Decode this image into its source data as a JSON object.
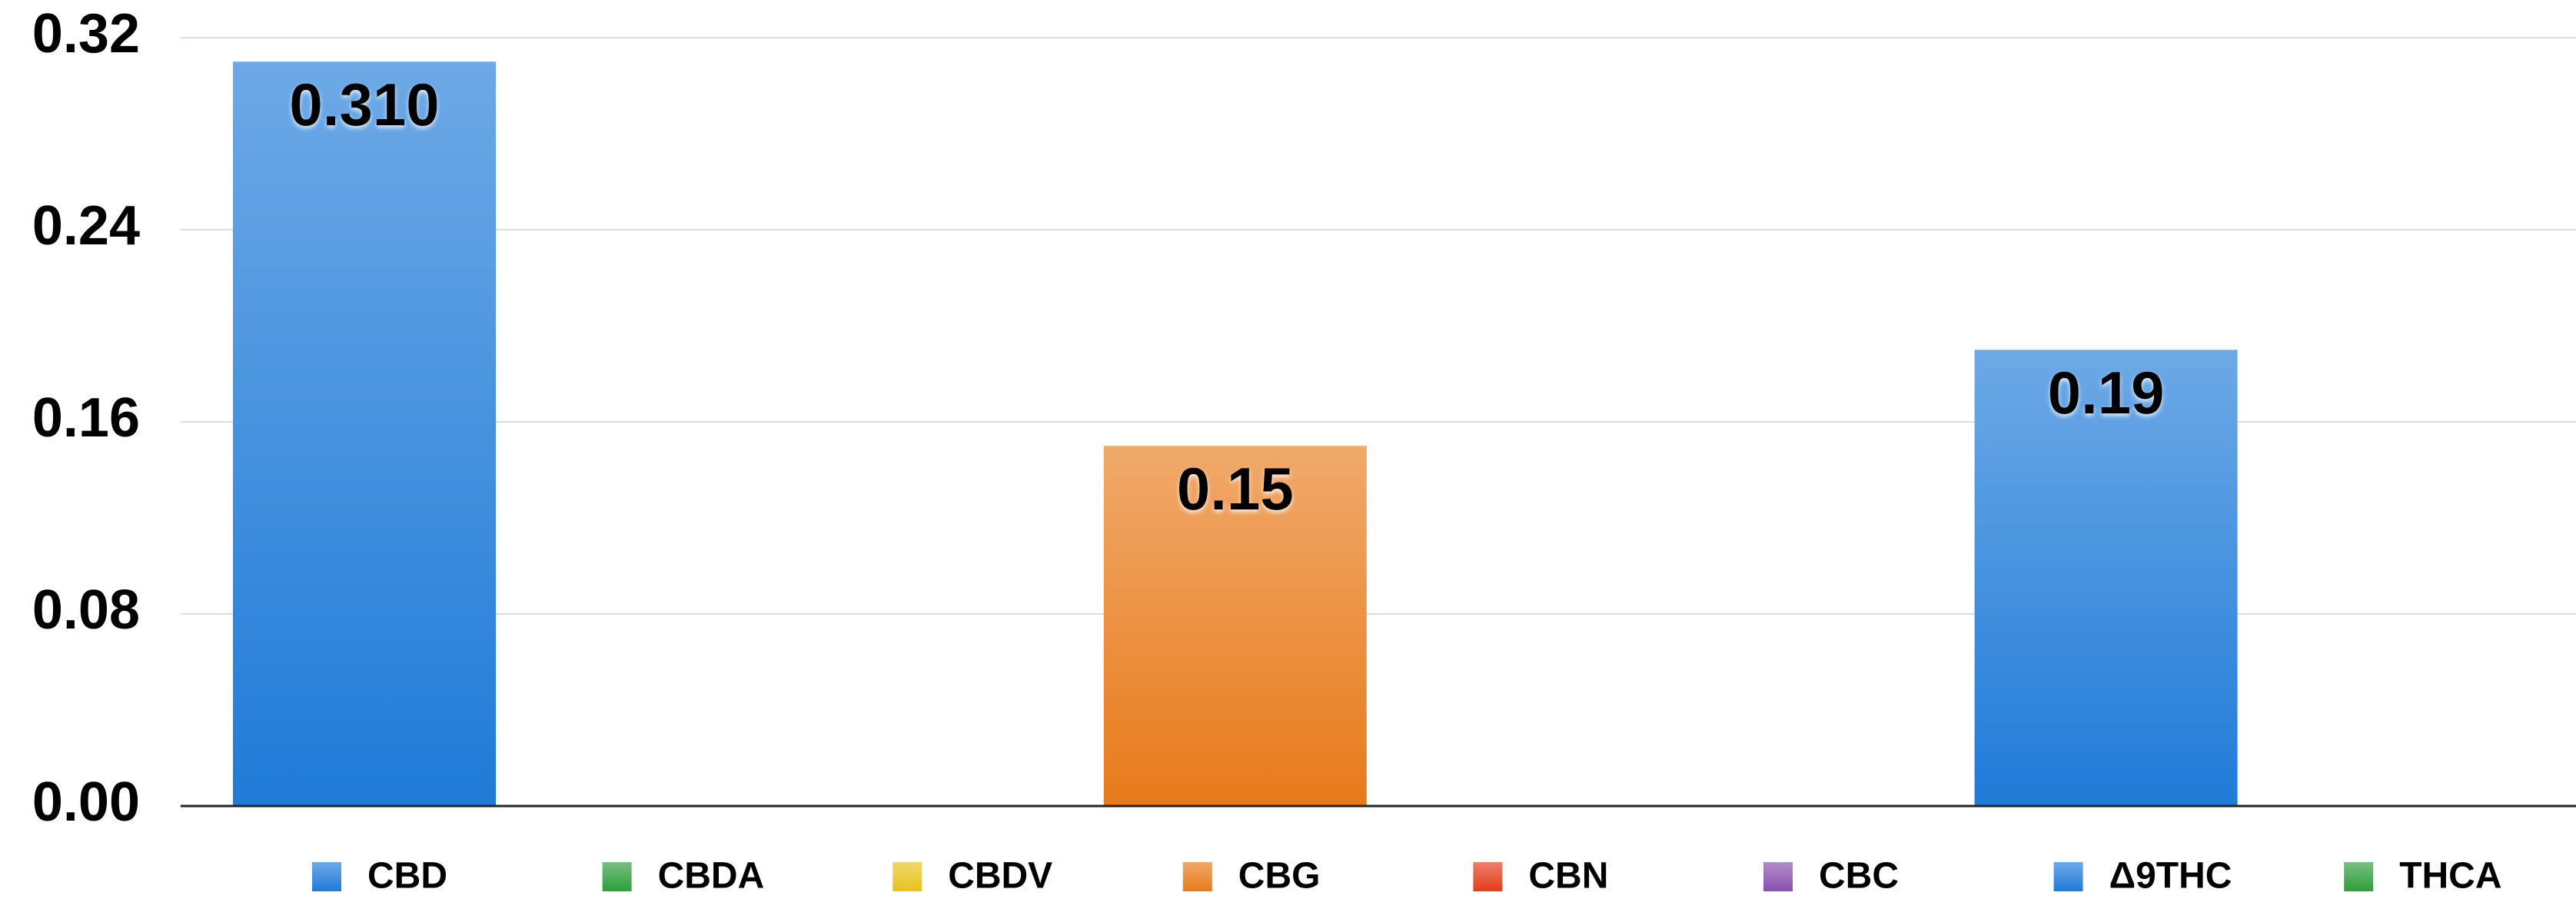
{
  "chart_data": {
    "type": "bar",
    "categories": [
      "CBD",
      "CBDA",
      "CBDV",
      "CBG",
      "CBN",
      "CBC",
      "Δ9THC",
      "THCA"
    ],
    "values": [
      0.31,
      0,
      0,
      0.15,
      0,
      0,
      0.19,
      0
    ],
    "value_labels": [
      "0.310",
      null,
      null,
      "0.15",
      null,
      null,
      "0.19",
      null
    ],
    "colors": [
      "#1f7bd8",
      "#2e9e3a",
      "#e8c21e",
      "#e87a1a",
      "#e53b1a",
      "#8a4fb0",
      "#1f7bd8",
      "#2e9e3a"
    ],
    "ylim": [
      0,
      0.32
    ],
    "yticks": [
      {
        "value": 0,
        "label": "0.00"
      },
      0.08,
      0.16,
      0.24,
      0.32
    ],
    "grid": true
  }
}
